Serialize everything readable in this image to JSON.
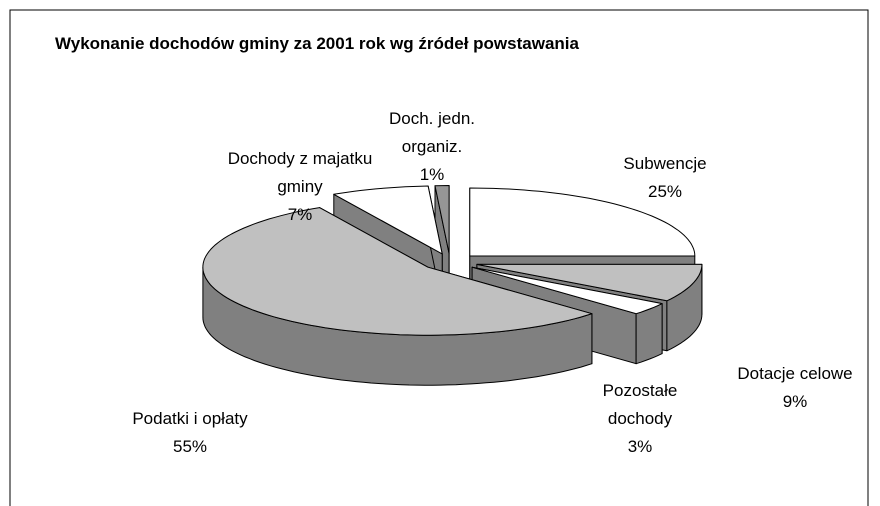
{
  "chart_data": {
    "type": "pie",
    "title": "Wykonanie dochodów gminy za 2001 rok wg źródeł powstawania",
    "categories": [
      "Subwencje",
      "Dotacje celowe",
      "Pozostałe dochody",
      "Podatki i opłaty",
      "Dochody z majatku gminy",
      "Doch. jedn. organiz."
    ],
    "values": [
      25,
      9,
      3,
      55,
      7,
      1
    ],
    "value_labels": [
      "25%",
      "9%",
      "3%",
      "55%",
      "7%",
      "1%"
    ],
    "colors": [
      "#ffffff",
      "#c0c0c0",
      "#ffffff",
      "#c0c0c0",
      "#ffffff",
      "#969696"
    ],
    "side_color": "#808080"
  }
}
